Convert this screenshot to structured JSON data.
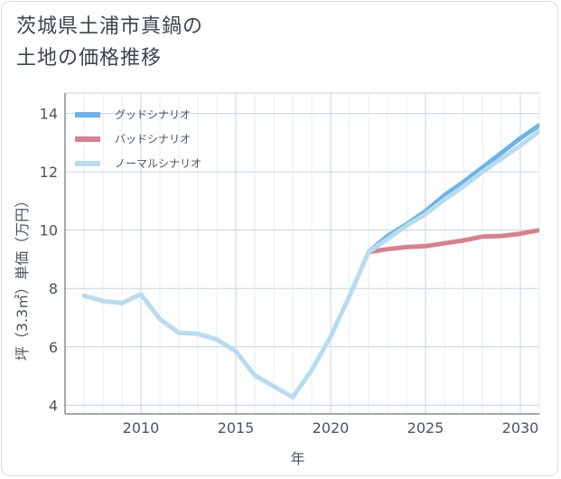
{
  "title": {
    "line1": "茨城県土浦市真鍋の",
    "line2": "土地の価格推移"
  },
  "colors": {
    "good": "#6ab4e8",
    "bad": "#d9808a",
    "normal": "#b7dcef",
    "grid": "#c5d6e6",
    "axis": "#4a5560"
  },
  "chart_data": {
    "type": "line",
    "title": "茨城県土浦市真鍋の土地の価格推移",
    "xlabel": "年",
    "ylabel": "坪（3.3㎡）単価（万円）",
    "xlim": [
      2006,
      2031
    ],
    "ylim": [
      3.7,
      14.7
    ],
    "xticks": [
      2010,
      2015,
      2020,
      2025,
      2030
    ],
    "yticks": [
      4,
      6,
      8,
      10,
      12,
      14
    ],
    "grid": true,
    "legend_position": "top-left",
    "series": [
      {
        "name": "グッドシナリオ",
        "color": "#6ab4e8",
        "x": [
          2022,
          2023,
          2024,
          2025,
          2026,
          2027,
          2028,
          2029,
          2030,
          2031
        ],
        "y": [
          9.25,
          9.8,
          10.2,
          10.65,
          11.2,
          11.65,
          12.15,
          12.65,
          13.15,
          13.6
        ]
      },
      {
        "name": "バッドシナリオ",
        "color": "#d9808a",
        "x": [
          2022,
          2023,
          2024,
          2025,
          2026,
          2027,
          2028,
          2029,
          2030,
          2031
        ],
        "y": [
          9.25,
          9.35,
          9.42,
          9.45,
          9.55,
          9.65,
          9.78,
          9.8,
          9.88,
          10.0
        ]
      },
      {
        "name": "ノーマルシナリオ",
        "color": "#b7dcef",
        "x": [
          2007,
          2008,
          2009,
          2010,
          2011,
          2012,
          2013,
          2014,
          2015,
          2016,
          2017,
          2018,
          2019,
          2020,
          2021,
          2022,
          2023,
          2024,
          2025,
          2026,
          2027,
          2028,
          2029,
          2030,
          2031
        ],
        "y": [
          7.75,
          7.57,
          7.5,
          7.8,
          6.95,
          6.48,
          6.45,
          6.25,
          5.85,
          5.02,
          4.65,
          4.27,
          5.2,
          6.35,
          7.75,
          9.25,
          9.7,
          10.15,
          10.55,
          11.05,
          11.5,
          12.0,
          12.45,
          12.9,
          13.4
        ]
      }
    ]
  }
}
